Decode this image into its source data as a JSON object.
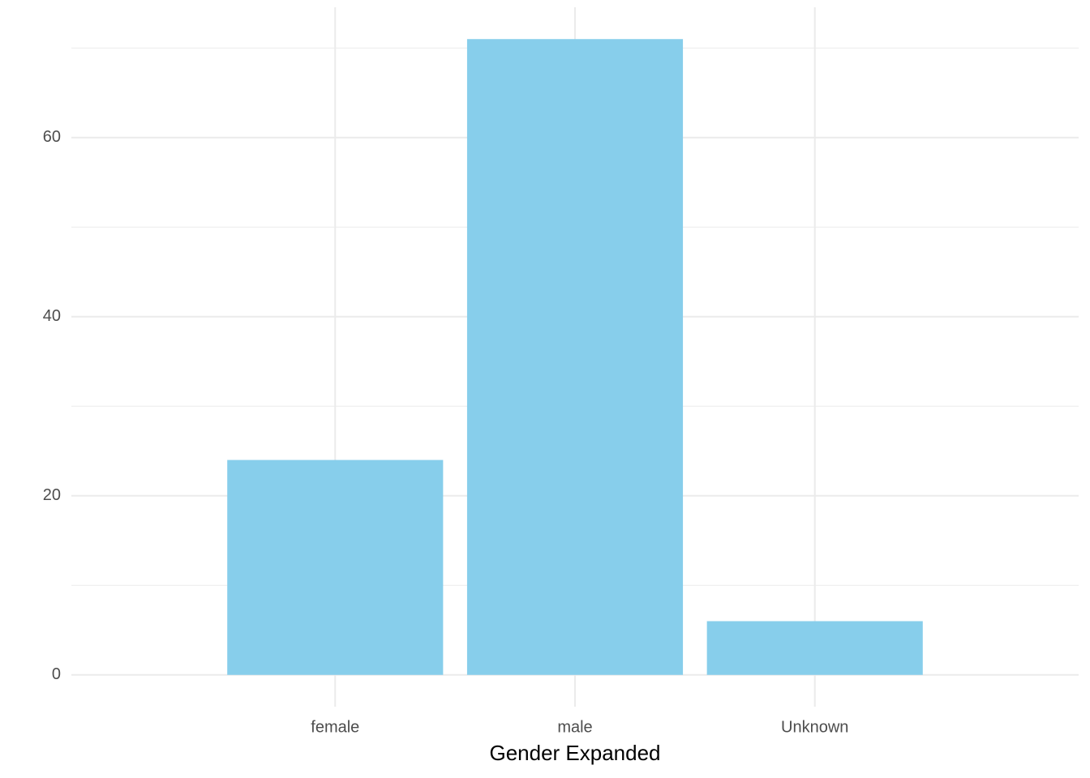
{
  "chart_data": {
    "type": "bar",
    "x_label": "Gender Expanded",
    "categories": [
      "female",
      "male",
      "Unknown"
    ],
    "values": [
      24,
      71,
      6
    ],
    "color": "#87ceeb",
    "ylim": [
      -3.55,
      74.55
    ],
    "yticks": [
      0,
      20,
      40,
      60
    ],
    "minor_yticks": [
      10,
      30,
      50,
      70
    ],
    "grid": true
  }
}
